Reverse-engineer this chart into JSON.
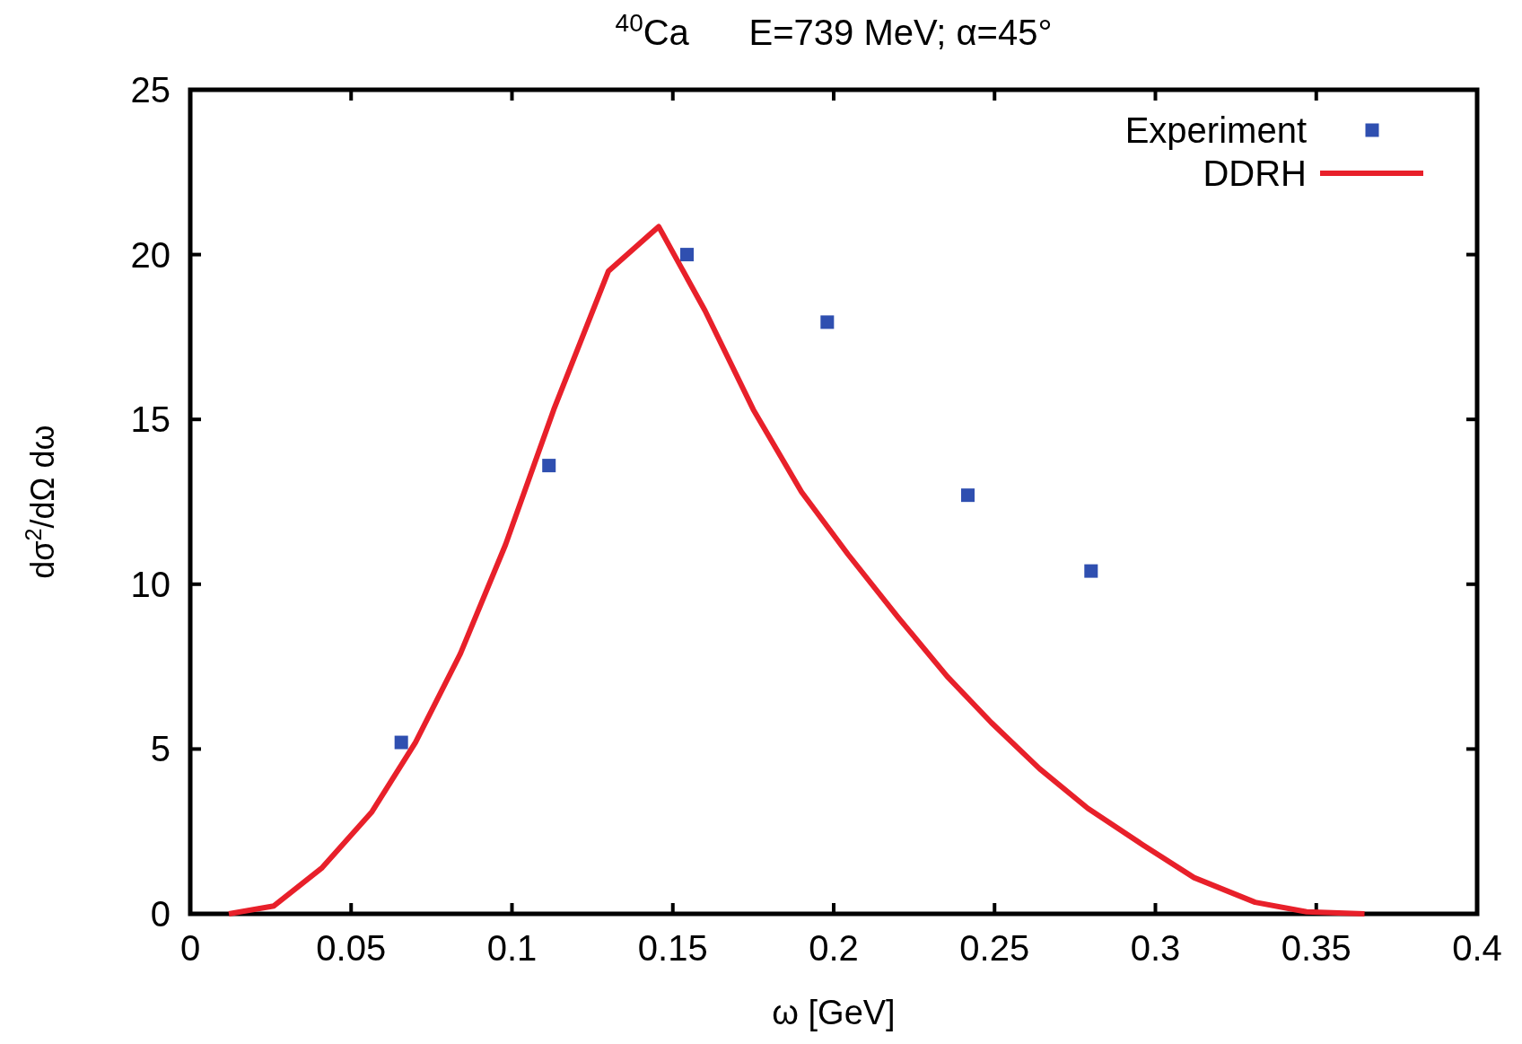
{
  "chart_data": {
    "type": "line",
    "title": "$^{40}$Ca      E=739 MeV; α=45°",
    "xlabel": "ω [GeV]",
    "ylabel": "dσ$^{2}$/dΩ dω",
    "xlim": [
      0,
      0.4
    ],
    "xticks": [
      0,
      0.05,
      0.1,
      0.15,
      0.2,
      0.25,
      0.3,
      0.35,
      0.4
    ],
    "ylim": [
      0,
      25
    ],
    "yticks": [
      0,
      5,
      10,
      15,
      20,
      25
    ],
    "grid": false,
    "legend": "top right",
    "series": [
      {
        "name": "Experiment",
        "type": "scatter",
        "color": "#2f4fb0",
        "marker": "square",
        "x": [
          0.0656,
          0.1115,
          0.1544,
          0.198,
          0.2417,
          0.28
        ],
        "values": [
          5.2,
          13.6,
          20.0,
          17.95,
          12.7,
          10.4
        ]
      },
      {
        "name": "DDRH",
        "type": "line",
        "color": "#e8202a",
        "marker": "none",
        "line_style": "solid",
        "x": [
          0.012,
          0.026,
          0.041,
          0.0565,
          0.07,
          0.084,
          0.098,
          0.113,
          0.13,
          0.1456,
          0.16,
          0.175,
          0.19,
          0.2045,
          0.22,
          0.2353,
          0.249,
          0.264,
          0.279,
          0.296,
          0.312,
          0.331,
          0.347,
          0.365
        ],
        "values": [
          0,
          0.24,
          1.4,
          3.1,
          5.2,
          7.9,
          11.2,
          15.3,
          19.5,
          20.85,
          18.3,
          15.3,
          12.8,
          10.9,
          9.0,
          7.2,
          5.8,
          4.4,
          3.2,
          2.1,
          1.1,
          0.35,
          0.06,
          0
        ]
      }
    ]
  }
}
